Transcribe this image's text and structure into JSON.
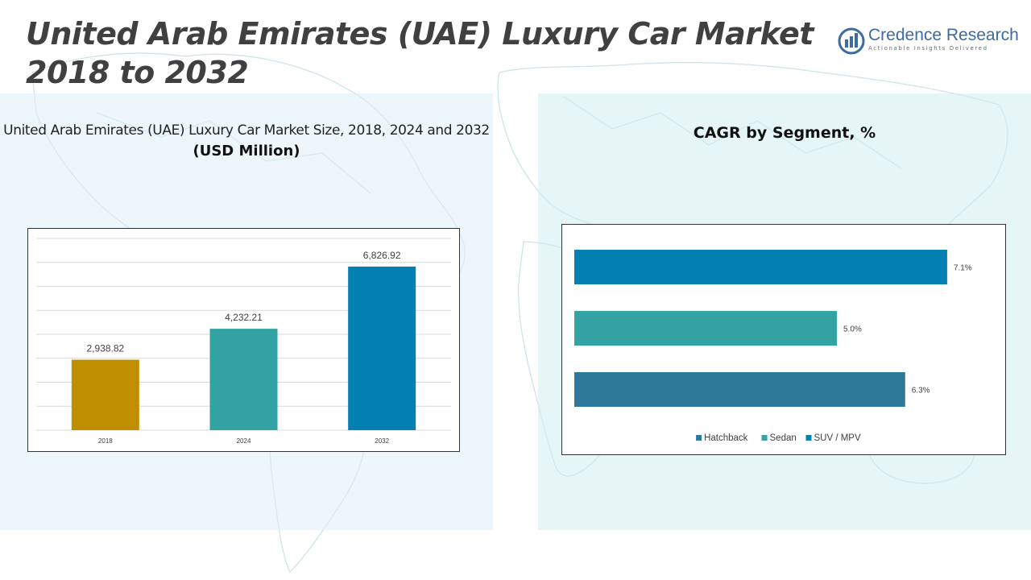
{
  "header": {
    "title": "United Arab Emirates (UAE) Luxury Car Market 2018 to 2032"
  },
  "logo": {
    "name": "Credence Research",
    "tagline": "Actionable Insights Delivered"
  },
  "left_panel": {
    "subtitle": "United Arab Emirates (UAE) Luxury Car Market Size, 2018, 2024 and 2032",
    "unit": "(USD Million)"
  },
  "right_panel": {
    "title": "CAGR by Segment, %"
  },
  "colors": {
    "gold": "#bf8f00",
    "teal": "#33a3a3",
    "blue": "#0580b3",
    "steel": "#2e7899",
    "map": "#cfe3ea"
  },
  "chart_data": [
    {
      "type": "bar",
      "title": "United Arab Emirates (UAE) Luxury Car Market Size, 2018, 2024 and 2032",
      "ylabel": "(USD Million)",
      "categories": [
        "2018",
        "2024",
        "2032"
      ],
      "values": [
        2938.82,
        4232.21,
        6826.92
      ],
      "labels": [
        "2,938.82",
        "4,232.21",
        "6,826.92"
      ],
      "bar_colors": [
        "#bf8f00",
        "#33a3a3",
        "#0580b3"
      ],
      "ylim": [
        0,
        8000
      ],
      "grid": true
    },
    {
      "type": "bar",
      "orientation": "horizontal",
      "title": "CAGR by Segment, %",
      "categories": [
        "SUV / MPV",
        "Sedan",
        "Hatchback"
      ],
      "values": [
        7.1,
        5.0,
        6.3
      ],
      "labels": [
        "7.1%",
        "5.0%",
        "6.3%"
      ],
      "bar_colors": [
        "#0580b3",
        "#33a3a3",
        "#2e7899"
      ],
      "xlim": [
        0,
        7.5
      ],
      "legend": [
        "Hatchback",
        "Sedan",
        "SUV / MPV"
      ],
      "legend_colors": [
        "#2e7899",
        "#33a3a3",
        "#0580b3"
      ],
      "legend_position": "bottom"
    }
  ]
}
